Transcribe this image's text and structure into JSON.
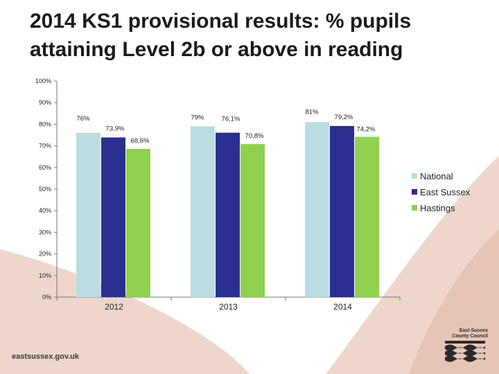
{
  "title": "2014 KS1 provisional results: % pupils attaining Level 2b or above in reading",
  "footer": {
    "url": "eastsussex.gov.uk",
    "logo_text": "East Sussex County Council"
  },
  "colors": {
    "background_shape": "#eed6cb",
    "background_shape_dark": "#e6c5b6"
  },
  "chart_data": {
    "type": "bar",
    "title": "",
    "xlabel": "",
    "ylabel": "",
    "categories": [
      "2012",
      "2013",
      "2014"
    ],
    "ylim": [
      0,
      100
    ],
    "yticks": [
      {
        "value": 0,
        "label": "0%"
      },
      {
        "value": 10,
        "label": "10%"
      },
      {
        "value": 20,
        "label": "20%"
      },
      {
        "value": 30,
        "label": "30%"
      },
      {
        "value": 40,
        "label": "40%"
      },
      {
        "value": 50,
        "label": "50%"
      },
      {
        "value": 60,
        "label": "60%"
      },
      {
        "value": 70,
        "label": "70%"
      },
      {
        "value": 80,
        "label": "80%"
      },
      {
        "value": 90,
        "label": "90%"
      },
      {
        "value": 100,
        "label": "100%"
      }
    ],
    "grid": false,
    "legend_position": "right",
    "series": [
      {
        "name": "National",
        "color": "#b9dde2",
        "values": [
          76,
          79,
          81
        ],
        "labels": [
          "76%",
          "79%",
          "81%"
        ]
      },
      {
        "name": "East Sussex",
        "color": "#2b2f8f",
        "values": [
          73.9,
          76.1,
          79.2
        ],
        "labels": [
          "73,9%",
          "76,1%",
          "79,2%"
        ]
      },
      {
        "name": "Hastings",
        "color": "#8fd14f",
        "values": [
          68.6,
          70.8,
          74.2
        ],
        "labels": [
          "68,6%",
          "70,8%",
          "74,2%"
        ]
      }
    ]
  }
}
